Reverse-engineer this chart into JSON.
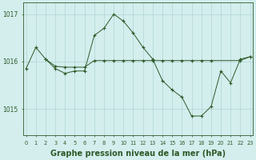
{
  "line1_x": [
    0,
    1,
    2,
    3,
    4,
    5,
    6,
    7,
    8,
    9,
    10,
    11,
    12,
    13,
    14,
    15,
    16,
    17,
    18,
    19,
    20,
    21,
    22,
    23
  ],
  "line1_y": [
    1015.85,
    1016.3,
    1016.05,
    1015.85,
    1015.75,
    1015.8,
    1015.8,
    1016.55,
    1016.7,
    1017.0,
    1016.85,
    1016.6,
    1016.3,
    1016.05,
    1015.6,
    1015.4,
    1015.25,
    1014.85,
    1014.85,
    1015.05,
    1015.8,
    1015.55,
    1016.05,
    1016.1
  ],
  "line2_x": [
    2,
    3,
    4,
    5,
    6,
    7,
    8,
    9,
    10,
    11,
    12,
    13,
    14,
    15,
    16,
    17,
    18,
    19,
    22,
    23
  ],
  "line2_y": [
    1016.05,
    1015.9,
    1015.88,
    1015.88,
    1015.88,
    1016.02,
    1016.02,
    1016.02,
    1016.02,
    1016.02,
    1016.02,
    1016.02,
    1016.02,
    1016.02,
    1016.02,
    1016.02,
    1016.02,
    1016.02,
    1016.02,
    1016.1
  ],
  "line_color": "#2d5a27",
  "marker": "+",
  "bg_color": "#d4eeee",
  "grid_color": "#b0d4d4",
  "xlabel": "Graphe pression niveau de la mer (hPa)",
  "yticks": [
    1015,
    1016,
    1017
  ],
  "ylim": [
    1014.45,
    1017.25
  ],
  "xlim": [
    -0.3,
    23.3
  ]
}
